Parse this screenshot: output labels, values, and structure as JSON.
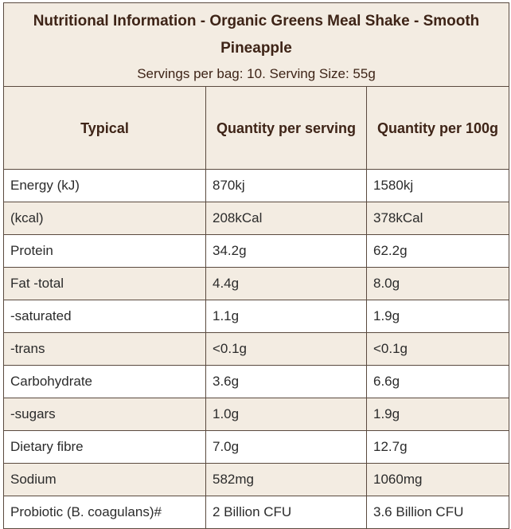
{
  "title": "Nutritional Information - Organic Greens Meal Shake - Smooth Pineapple",
  "subtitle": "Servings per bag: 10. Serving Size: 55g",
  "headers": [
    "Typical",
    "Quantity per serving",
    "Quantity per 100g"
  ],
  "rows": [
    {
      "name": "Energy (kJ)",
      "per_serving": "870kj",
      "per_100g": "1580kj"
    },
    {
      "name": "(kcal)",
      "per_serving": "208kCal",
      "per_100g": "378kCal"
    },
    {
      "name": "Protein",
      "per_serving": "34.2g",
      "per_100g": "62.2g"
    },
    {
      "name": "Fat -total",
      "per_serving": "4.4g",
      "per_100g": "8.0g"
    },
    {
      "name": "-saturated",
      "per_serving": "1.1g",
      "per_100g": "1.9g"
    },
    {
      "name": "-trans",
      "per_serving": "<0.1g",
      "per_100g": "<0.1g"
    },
    {
      "name": "Carbohydrate",
      "per_serving": "3.6g",
      "per_100g": "6.6g"
    },
    {
      "name": "-sugars",
      "per_serving": "1.0g",
      "per_100g": "1.9g"
    },
    {
      "name": "Dietary fibre",
      "per_serving": "7.0g",
      "per_100g": "12.7g"
    },
    {
      "name": "Sodium",
      "per_serving": "582mg",
      "per_100g": "1060mg"
    },
    {
      "name": "Probiotic (B. coagulans)#",
      "per_serving": "2 Billion CFU",
      "per_100g": "3.6 Billion CFU"
    }
  ],
  "colors": {
    "header_bg": "#f3ece2",
    "title_text": "#3e2417",
    "border": "#5a4a3f"
  }
}
